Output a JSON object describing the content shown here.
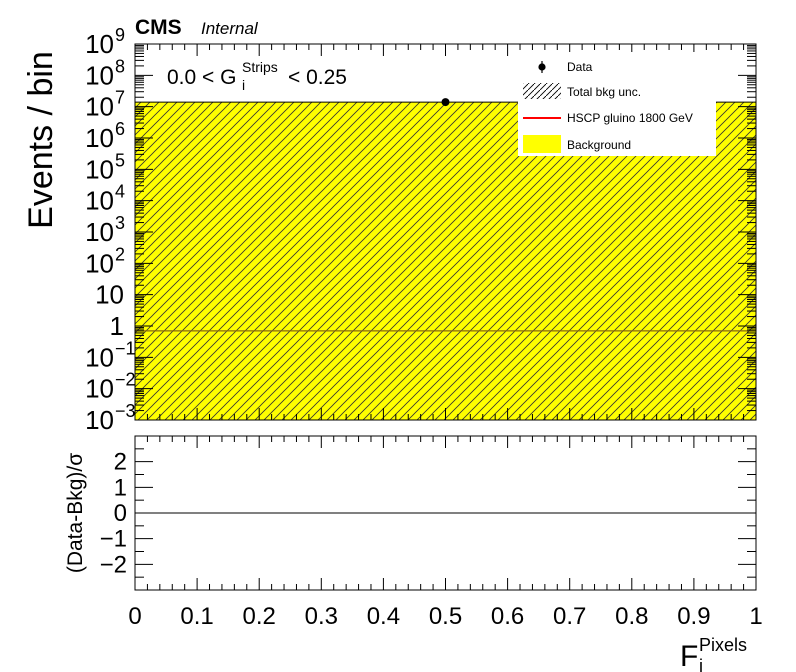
{
  "header": {
    "experiment": "CMS",
    "status": "Internal"
  },
  "chart_data": [
    {
      "type": "histogram",
      "panel": "main",
      "ylabel": "Events / bin",
      "yscale": "log",
      "ylim": [
        0.001,
        1000000000
      ],
      "xlim": [
        0,
        1
      ],
      "y_tick_labels": [
        {
          "base": "10",
          "exp": "9"
        },
        {
          "base": "10",
          "exp": "8"
        },
        {
          "base": "10",
          "exp": "7"
        },
        {
          "base": "10",
          "exp": "6"
        },
        {
          "base": "10",
          "exp": "5"
        },
        {
          "base": "10",
          "exp": "4"
        },
        {
          "base": "10",
          "exp": "3"
        },
        {
          "base": "10",
          "exp": "2"
        },
        {
          "base": "10",
          "exp": ""
        },
        {
          "base": "1",
          "exp": ""
        },
        {
          "base": "10",
          "exp": "−1"
        },
        {
          "base": "10",
          "exp": "−2"
        },
        {
          "base": "10",
          "exp": "−3"
        }
      ],
      "annotation": {
        "prefix": "0.0 < G",
        "subscript": "i",
        "superscript": "Strips",
        "suffix": " < 0.25"
      },
      "legend": {
        "placement": "top-right",
        "entries": [
          {
            "label": "Data",
            "style": "marker"
          },
          {
            "label": "Total bkg unc.",
            "style": "hatch"
          },
          {
            "label": "HSCP gluino 1800 GeV",
            "style": "line",
            "color": "#ff0000"
          },
          {
            "label": "Background",
            "style": "fill",
            "color": "#ffff00"
          }
        ]
      },
      "series": [
        {
          "name": "Background",
          "bins": [
            {
              "xlow": 0,
              "xhigh": 1,
              "value": 14000000
            }
          ],
          "color": "#ffff00",
          "uncertainty_hatched": true
        },
        {
          "name": "HSCP gluino 1800 GeV",
          "bins": [
            {
              "xlow": 0,
              "xhigh": 1,
              "value": 0.7
            }
          ],
          "color": "#ff0000"
        },
        {
          "name": "Data",
          "points": [
            {
              "x": 0.5,
              "y": 14000000
            }
          ],
          "color": "#000000"
        }
      ]
    },
    {
      "type": "ratio",
      "panel": "pull",
      "ylabel": "(Data-Bkg)/σ",
      "ylim": [
        -3,
        3
      ],
      "y_tick_labels": [
        "2",
        "1",
        "0",
        "−1",
        "−2"
      ],
      "x_tick_labels": [
        "0",
        "0.1",
        "0.2",
        "0.3",
        "0.4",
        "0.5",
        "0.6",
        "0.7",
        "0.8",
        "0.9",
        "1"
      ],
      "xlabel": {
        "base": "F",
        "subscript": "i",
        "superscript": "Pixels"
      },
      "reference_line": 0
    }
  ]
}
